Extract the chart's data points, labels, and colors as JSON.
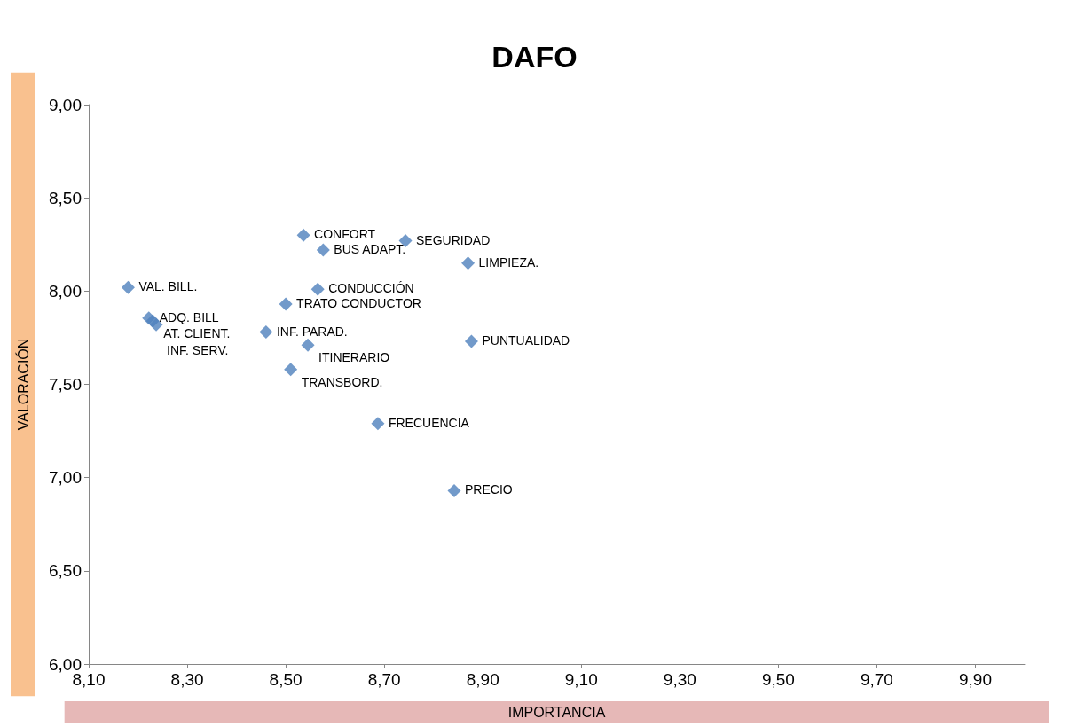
{
  "chart_data": {
    "type": "scatter",
    "title": "DAFO",
    "xlabel": "IMPORTANCIA",
    "ylabel": "VALORACIÓN",
    "x": [
      8.18,
      8.222,
      8.23,
      8.237,
      8.46,
      8.5,
      8.536,
      8.576,
      8.565,
      8.545,
      8.51,
      8.743,
      8.87,
      8.877,
      8.687,
      8.842
    ],
    "values": [
      8.02,
      7.855,
      7.84,
      7.82,
      7.78,
      7.93,
      8.3,
      8.22,
      8.01,
      7.71,
      7.58,
      8.27,
      8.15,
      7.73,
      7.29,
      6.93
    ],
    "color": "#4f81bd",
    "marker": "diamond",
    "grid": false,
    "xlim": [
      8.1,
      10.0
    ],
    "xticks": [
      {
        "value": 8.1,
        "label": "8,10"
      },
      {
        "value": 8.3,
        "label": "8,30"
      },
      {
        "value": 8.5,
        "label": "8,50"
      },
      {
        "value": 8.7,
        "label": "8,70"
      },
      {
        "value": 8.9,
        "label": "8,90"
      },
      {
        "value": 9.1,
        "label": "9,10"
      },
      {
        "value": 9.3,
        "label": "9,30"
      },
      {
        "value": 9.5,
        "label": "9,50"
      },
      {
        "value": 9.7,
        "label": "9,70"
      },
      {
        "value": 9.9,
        "label": "9,90"
      }
    ],
    "ylim": [
      6.0,
      9.0
    ],
    "yticks": [
      {
        "value": 6.0,
        "label": "6,00"
      },
      {
        "value": 6.5,
        "label": "6,50"
      },
      {
        "value": 7.0,
        "label": "7,00"
      },
      {
        "value": 7.5,
        "label": "7,50"
      },
      {
        "value": 8.0,
        "label": "8,00"
      },
      {
        "value": 8.5,
        "label": "8,50"
      },
      {
        "value": 9.0,
        "label": "9,00"
      }
    ],
    "annotations": [
      {
        "text": "VAL. BILL.",
        "x": 8.18,
        "y": 8.02
      },
      {
        "text": "ADQ. BILL",
        "x": 8.222,
        "y": 7.855
      },
      {
        "text": "AT. CLIENT.",
        "x": 8.23,
        "y": 7.84
      },
      {
        "text": "INF. SERV.",
        "x": 8.237,
        "y": 7.82
      },
      {
        "text": "INF. PARAD.",
        "x": 8.46,
        "y": 7.78
      },
      {
        "text": "TRATO CONDUCTOR",
        "x": 8.5,
        "y": 7.93
      },
      {
        "text": "CONFORT",
        "x": 8.536,
        "y": 8.3
      },
      {
        "text": "BUS ADAPT.",
        "x": 8.576,
        "y": 8.22
      },
      {
        "text": "CONDUCCIÓN",
        "x": 8.565,
        "y": 8.01
      },
      {
        "text": "ITINERARIO",
        "x": 8.545,
        "y": 7.71
      },
      {
        "text": "TRANSBORD.",
        "x": 8.51,
        "y": 7.58
      },
      {
        "text": "SEGURIDAD",
        "x": 8.743,
        "y": 8.27
      },
      {
        "text": "LIMPIEZA.",
        "x": 8.87,
        "y": 8.15
      },
      {
        "text": "PUNTUALIDAD",
        "x": 8.877,
        "y": 7.73
      },
      {
        "text": "FRECUENCIA",
        "x": 8.687,
        "y": 7.29
      },
      {
        "text": "PRECIO",
        "x": 8.842,
        "y": 6.93
      }
    ]
  }
}
